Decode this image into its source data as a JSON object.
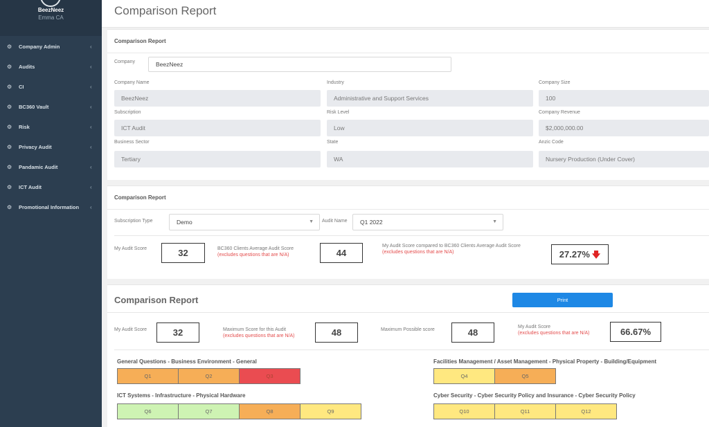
{
  "sidebar": {
    "profile": {
      "name": "BeezNeez",
      "location": "Emma CA"
    },
    "items": [
      {
        "label": "Company Admin",
        "icon": "gear-icon",
        "glyph": "⚙"
      },
      {
        "label": "Audits",
        "icon": "cogs-icon",
        "glyph": "⚙"
      },
      {
        "label": "CI",
        "icon": "cogs-icon",
        "glyph": "⚙"
      },
      {
        "label": "BC360 Vault",
        "icon": "cogs-icon",
        "glyph": "⚙"
      },
      {
        "label": "Risk",
        "icon": "cogs-icon",
        "glyph": "⚙"
      },
      {
        "label": "Privacy Audit",
        "icon": "cogs-icon",
        "glyph": "⚙"
      },
      {
        "label": "Pandamic Audit",
        "icon": "cogs-icon",
        "glyph": "⚙"
      },
      {
        "label": "ICT Audit",
        "icon": "cogs-icon",
        "glyph": "⚙"
      },
      {
        "label": "Promotional Information",
        "icon": "cogs-icon",
        "glyph": "⚙"
      }
    ],
    "chevron": "‹"
  },
  "header": {
    "title": "Comparison Report"
  },
  "company_panel": {
    "title": "Comparison Report",
    "company_label": "Company",
    "company_value": "BeezNeez",
    "fields": [
      {
        "label": "Company Name",
        "value": "BeezNeez"
      },
      {
        "label": "Industry",
        "value": "Administrative and Support Services"
      },
      {
        "label": "Company Size",
        "value": "100"
      },
      {
        "label": "Subscription",
        "value": "ICT Audit"
      },
      {
        "label": "Risk Level",
        "value": "Low"
      },
      {
        "label": "Company Revenue",
        "value": "$2,000,000.00"
      },
      {
        "label": "Business Sector",
        "value": "Tertiary"
      },
      {
        "label": "State",
        "value": "WA"
      },
      {
        "label": "Anzic Code",
        "value": "Nursery Production (Under Cover)"
      }
    ]
  },
  "compare_panel": {
    "title": "Comparison Report",
    "subscription_type_label": "Subscription Type",
    "subscription_type_value": "Demo",
    "audit_name_label": "Audit Name",
    "audit_name_value": "Q1 2022",
    "my_score_label": "My Audit Score",
    "my_score": "32",
    "avg_label": "BC360 Clients Average Audit Score",
    "avg_note": "(excludes questions that are N/A)",
    "avg_score": "44",
    "compared_label": "My Audit Score compared to BC360 Clients Average Audit Score",
    "compared_note": "(excludes questions that are N/A)",
    "compared_value": "27.27%",
    "arrow_glyph": "🡇",
    "arrow_color": "#e02424"
  },
  "report_panel": {
    "title": "Comparison Report",
    "print_label": "Print",
    "my_score_label": "My Audit Score",
    "my_score": "32",
    "max_audit_label": "Maximum Score for this Audit",
    "max_audit_note": "(excludes questions that are N/A)",
    "max_audit_score": "48",
    "max_possible_label": "Maximum Possible score",
    "max_possible_score": "48",
    "pct_label": "My Audit Score",
    "pct_note": "(excludes questions that are N/A)",
    "pct_value": "66.67%",
    "categories": [
      {
        "title": "General Questions - Business Environment - General",
        "cells": [
          {
            "label": "Q1",
            "color": "orange"
          },
          {
            "label": "Q2",
            "color": "orange"
          },
          {
            "label": "Q3",
            "color": "red"
          }
        ]
      },
      {
        "title": "Facilities Management / Asset Management - Physical Property - Building/Equipment",
        "cells": [
          {
            "label": "Q4",
            "color": "yellow"
          },
          {
            "label": "Q5",
            "color": "orange"
          }
        ]
      },
      {
        "title": "ICT Systems - Infrastructure - Physical Hardware",
        "cells": [
          {
            "label": "Q6",
            "color": "green"
          },
          {
            "label": "Q7",
            "color": "green"
          },
          {
            "label": "Q8",
            "color": "orange"
          },
          {
            "label": "Q9",
            "color": "yellow"
          }
        ]
      },
      {
        "title": "Cyber Security - Cyber Security Policy and Insurance - Cyber Security Policy",
        "cells": [
          {
            "label": "Q10",
            "color": "yellow"
          },
          {
            "label": "Q11",
            "color": "yellow"
          },
          {
            "label": "Q12",
            "color": "yellow"
          }
        ]
      }
    ],
    "colors": {
      "orange": "#f6ae57",
      "red": "#ea4c51",
      "yellow": "#ffe880",
      "green": "#cef3b3"
    }
  }
}
